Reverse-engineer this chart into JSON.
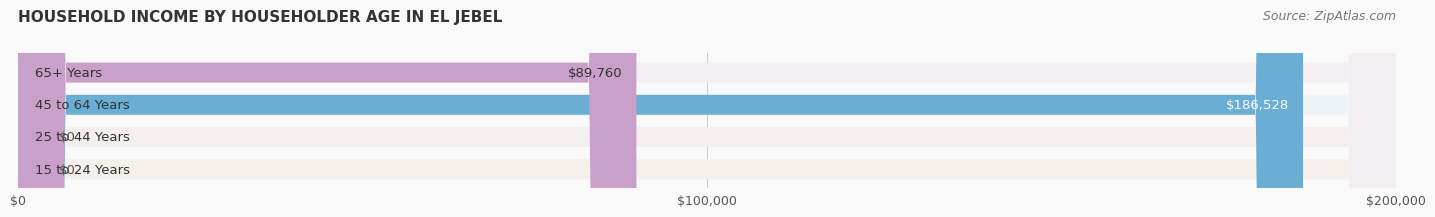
{
  "title": "HOUSEHOLD INCOME BY HOUSEHOLDER AGE IN EL JEBEL",
  "source": "Source: ZipAtlas.com",
  "categories": [
    "15 to 24 Years",
    "25 to 44 Years",
    "45 to 64 Years",
    "65+ Years"
  ],
  "values": [
    0,
    0,
    186528,
    89760
  ],
  "bar_colors": [
    "#f0c897",
    "#e8a0a0",
    "#6aaed6",
    "#c9a0c9"
  ],
  "bg_colors": [
    "#f5f0ec",
    "#f5eeee",
    "#eef3f8",
    "#f2eef2"
  ],
  "label_colors": [
    "#333333",
    "#333333",
    "#ffffff",
    "#333333"
  ],
  "value_labels": [
    "$0",
    "$0",
    "$186,528",
    "$89,760"
  ],
  "xlim": [
    0,
    200000
  ],
  "xticks": [
    0,
    100000,
    200000
  ],
  "xticklabels": [
    "$0",
    "$100,000",
    "$200,000"
  ],
  "title_fontsize": 11,
  "source_fontsize": 9,
  "label_fontsize": 9.5,
  "value_fontsize": 9.5,
  "bar_height": 0.62,
  "background_color": "#f9f9f9"
}
